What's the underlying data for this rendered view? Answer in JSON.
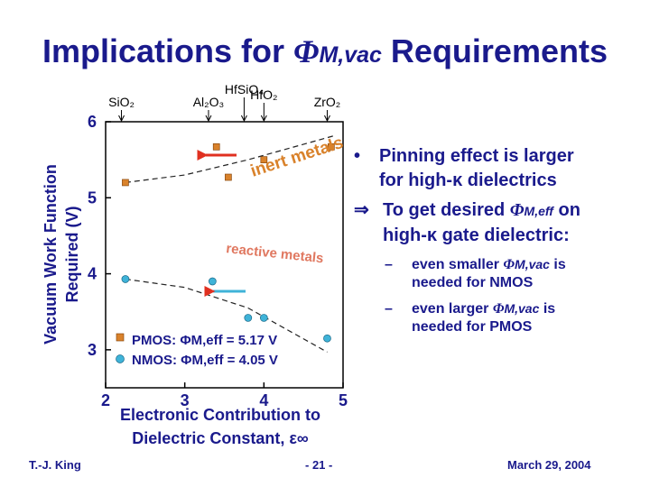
{
  "slide": {
    "title_pre": "Implications for ",
    "title_symbol": "Φ",
    "title_sub": "M,vac",
    "title_post": " Requirements"
  },
  "bullets": {
    "b1_mark": "•",
    "b1_line1": "Pinning effect is larger",
    "b1_line2": "for high-κ dielectrics",
    "b2_mark": "⇒",
    "b2_line1_pre": "To get desired ",
    "b2_symbol": "Φ",
    "b2_sub": "M,eff",
    "b2_line1_post": " on",
    "b2_line2": "high-κ gate dielectric:",
    "sub1_mark": "–",
    "sub1_pre": "even smaller ",
    "sub1_symbol": "Φ",
    "sub1_sub": "M,vac",
    "sub1_post": " is",
    "sub1_line2": "needed for NMOS",
    "sub2_mark": "–",
    "sub2_pre": "even larger ",
    "sub2_symbol": "Φ",
    "sub2_sub": "M,vac",
    "sub2_post": " is",
    "sub2_line2": "needed for PMOS"
  },
  "footer": {
    "author": "T.-J. King",
    "page": "- 21 -",
    "date": "March 29, 2004"
  },
  "chart_data": {
    "type": "scatter",
    "ylabel_line1": "Vacuum Work Function",
    "ylabel_line2": "Required (V)",
    "xlabel_line1": "Electronic Contribution to",
    "xlabel_line2": "Dielectric Constant, ε∞",
    "xlim": [
      2,
      5
    ],
    "ylim": [
      2.5,
      6
    ],
    "x_ticks": [
      2,
      3,
      4,
      5
    ],
    "y_ticks": [
      3,
      4,
      5,
      6
    ],
    "grid": false,
    "top_labels": [
      {
        "text": "SiO₂",
        "x": 2.2
      },
      {
        "text": "Al₂O₃",
        "x": 3.3
      },
      {
        "text": "HfSiO₄",
        "x": 3.75
      },
      {
        "text": "HfO₂",
        "x": 4.0
      },
      {
        "text": "ZrO₂",
        "x": 4.8
      }
    ],
    "series": [
      {
        "name": "PMOS",
        "color": "#d9822b",
        "marker": "square",
        "points": [
          [
            2.25,
            5.2
          ],
          [
            3.4,
            5.67
          ],
          [
            3.55,
            5.27
          ],
          [
            4.0,
            5.5
          ],
          [
            4.85,
            5.67
          ]
        ],
        "trend": [
          [
            2.25,
            5.2
          ],
          [
            3.0,
            5.3
          ],
          [
            3.8,
            5.5
          ],
          [
            4.9,
            5.82
          ]
        ]
      },
      {
        "name": "NMOS",
        "color": "#3fb3d8",
        "marker": "circle",
        "points": [
          [
            2.25,
            3.93
          ],
          [
            3.35,
            3.9
          ],
          [
            3.8,
            3.42
          ],
          [
            4.0,
            3.42
          ],
          [
            4.8,
            3.15
          ]
        ],
        "trend": [
          [
            2.25,
            3.93
          ],
          [
            3.0,
            3.82
          ],
          [
            3.8,
            3.55
          ],
          [
            4.8,
            2.97
          ]
        ]
      }
    ],
    "annotations": [
      {
        "text": "inert metals",
        "color": "#d9822b"
      },
      {
        "text": "reactive metals",
        "color": "#e07860"
      }
    ],
    "legend": [
      {
        "label": "PMOS: ΦM,eff = 5.17 V",
        "color": "#d9822b",
        "marker": "square"
      },
      {
        "label": "NMOS: ΦM,eff = 4.05 V",
        "color": "#3fb3d8",
        "marker": "circle"
      }
    ],
    "arrow_color": "#e03020"
  }
}
